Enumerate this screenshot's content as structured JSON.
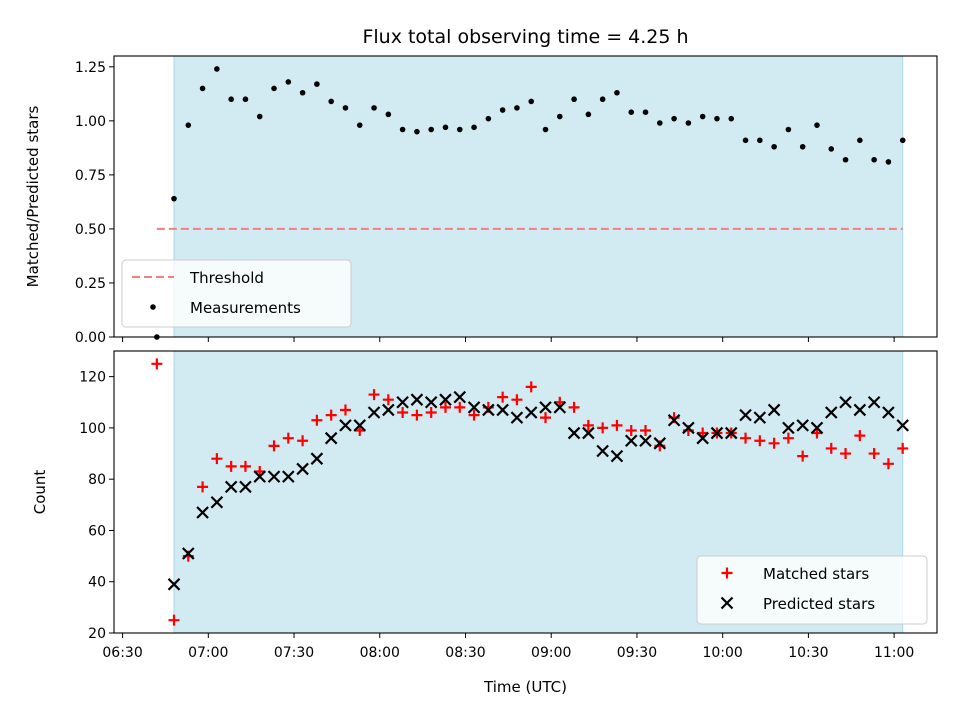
{
  "chart_data": [
    {
      "type": "scatter",
      "title": "Flux total observing time = 4.25 h",
      "xlabel": "",
      "ylabel": "Matched/Predicted stars",
      "xlim": [
        "06:27",
        "11:15"
      ],
      "ylim": [
        0,
        1.3
      ],
      "yticks": [
        0.0,
        0.25,
        0.5,
        0.75,
        1.0,
        1.25
      ],
      "ytick_labels": [
        "0.00",
        "0.25",
        "0.50",
        "0.75",
        "1.00",
        "1.25"
      ],
      "observing_window": [
        "06:48",
        "11:03"
      ],
      "observing_window_color": "#add8e6",
      "legend_position": "lower-left",
      "threshold": {
        "name": "Threshold",
        "value": 0.5,
        "x_start": "06:42",
        "x_end": "11:03",
        "color": "#f08080"
      },
      "series": [
        {
          "name": "Measurements",
          "color": "#000000",
          "marker": "dot",
          "x": [
            "06:42",
            "06:48",
            "06:53",
            "06:58",
            "07:03",
            "07:08",
            "07:13",
            "07:18",
            "07:23",
            "07:28",
            "07:33",
            "07:38",
            "07:43",
            "07:48",
            "07:53",
            "07:58",
            "08:03",
            "08:08",
            "08:13",
            "08:18",
            "08:23",
            "08:28",
            "08:33",
            "08:38",
            "08:43",
            "08:48",
            "08:53",
            "08:58",
            "09:03",
            "09:08",
            "09:13",
            "09:18",
            "09:23",
            "09:28",
            "09:33",
            "09:38",
            "09:43",
            "09:48",
            "09:53",
            "09:58",
            "10:03",
            "10:08",
            "10:13",
            "10:18",
            "10:23",
            "10:28",
            "10:33",
            "10:38",
            "10:43",
            "10:48",
            "10:53",
            "10:58",
            "11:03"
          ],
          "y": [
            0.0,
            0.64,
            0.98,
            1.15,
            1.24,
            1.1,
            1.1,
            1.02,
            1.15,
            1.18,
            1.13,
            1.17,
            1.09,
            1.06,
            0.98,
            1.06,
            1.03,
            0.96,
            0.95,
            0.96,
            0.97,
            0.96,
            0.97,
            1.01,
            1.05,
            1.06,
            1.09,
            0.96,
            1.02,
            1.1,
            1.03,
            1.1,
            1.13,
            1.04,
            1.04,
            0.99,
            1.01,
            0.99,
            1.02,
            1.01,
            1.01,
            0.91,
            0.91,
            0.88,
            0.96,
            0.88,
            0.98,
            0.87,
            0.82,
            0.91,
            0.82,
            0.81,
            0.91
          ]
        }
      ]
    },
    {
      "type": "scatter",
      "title": "",
      "xlabel": "Time (UTC)",
      "ylabel": "Count",
      "xlim": [
        "06:27",
        "11:15"
      ],
      "ylim": [
        20,
        130
      ],
      "yticks": [
        20,
        40,
        60,
        80,
        100,
        120
      ],
      "xticks": [
        "06:30",
        "07:00",
        "07:30",
        "08:00",
        "08:30",
        "09:00",
        "09:30",
        "10:00",
        "10:30",
        "11:00"
      ],
      "observing_window": [
        "06:48",
        "11:03"
      ],
      "legend_position": "lower-right",
      "series": [
        {
          "name": "Matched stars",
          "color": "#ff0000",
          "marker": "plus",
          "x": [
            "06:42",
            "06:48",
            "06:53",
            "06:58",
            "07:03",
            "07:08",
            "07:13",
            "07:18",
            "07:23",
            "07:28",
            "07:33",
            "07:38",
            "07:43",
            "07:48",
            "07:53",
            "07:58",
            "08:03",
            "08:08",
            "08:13",
            "08:18",
            "08:23",
            "08:28",
            "08:33",
            "08:38",
            "08:43",
            "08:48",
            "08:53",
            "08:58",
            "09:03",
            "09:08",
            "09:13",
            "09:18",
            "09:23",
            "09:28",
            "09:33",
            "09:38",
            "09:43",
            "09:48",
            "09:53",
            "09:58",
            "10:03",
            "10:08",
            "10:13",
            "10:18",
            "10:23",
            "10:28",
            "10:33",
            "10:38",
            "10:43",
            "10:48",
            "10:53",
            "10:58",
            "11:03"
          ],
          "y": [
            125,
            25,
            50,
            77,
            88,
            85,
            85,
            83,
            93,
            96,
            95,
            103,
            105,
            107,
            99,
            113,
            111,
            106,
            105,
            106,
            108,
            108,
            105,
            108,
            112,
            111,
            116,
            104,
            110,
            108,
            101,
            100,
            101,
            99,
            99,
            93,
            104,
            99,
            98,
            98,
            98,
            96,
            95,
            94,
            96,
            89,
            98,
            92,
            90,
            97,
            90,
            86,
            92
          ]
        },
        {
          "name": "Predicted stars",
          "color": "#000000",
          "marker": "x",
          "x": [
            "06:48",
            "06:53",
            "06:58",
            "07:03",
            "07:08",
            "07:13",
            "07:18",
            "07:23",
            "07:28",
            "07:33",
            "07:38",
            "07:43",
            "07:48",
            "07:53",
            "07:58",
            "08:03",
            "08:08",
            "08:13",
            "08:18",
            "08:23",
            "08:28",
            "08:33",
            "08:38",
            "08:43",
            "08:48",
            "08:53",
            "08:58",
            "09:03",
            "09:08",
            "09:13",
            "09:18",
            "09:23",
            "09:28",
            "09:33",
            "09:38",
            "09:43",
            "09:48",
            "09:53",
            "09:58",
            "10:03",
            "10:08",
            "10:13",
            "10:18",
            "10:23",
            "10:28",
            "10:33",
            "10:38",
            "10:43",
            "10:48",
            "10:53",
            "10:58",
            "11:03"
          ],
          "y": [
            39,
            51,
            67,
            71,
            77,
            77,
            81,
            81,
            81,
            84,
            88,
            96,
            101,
            101,
            106,
            107,
            110,
            111,
            110,
            111,
            112,
            108,
            107,
            107,
            104,
            106,
            108,
            108,
            98,
            98,
            91,
            89,
            95,
            95,
            94,
            103,
            100,
            96,
            98,
            98,
            105,
            104,
            107,
            100,
            101,
            100,
            106,
            110,
            107,
            110,
            106,
            101
          ]
        }
      ]
    }
  ]
}
